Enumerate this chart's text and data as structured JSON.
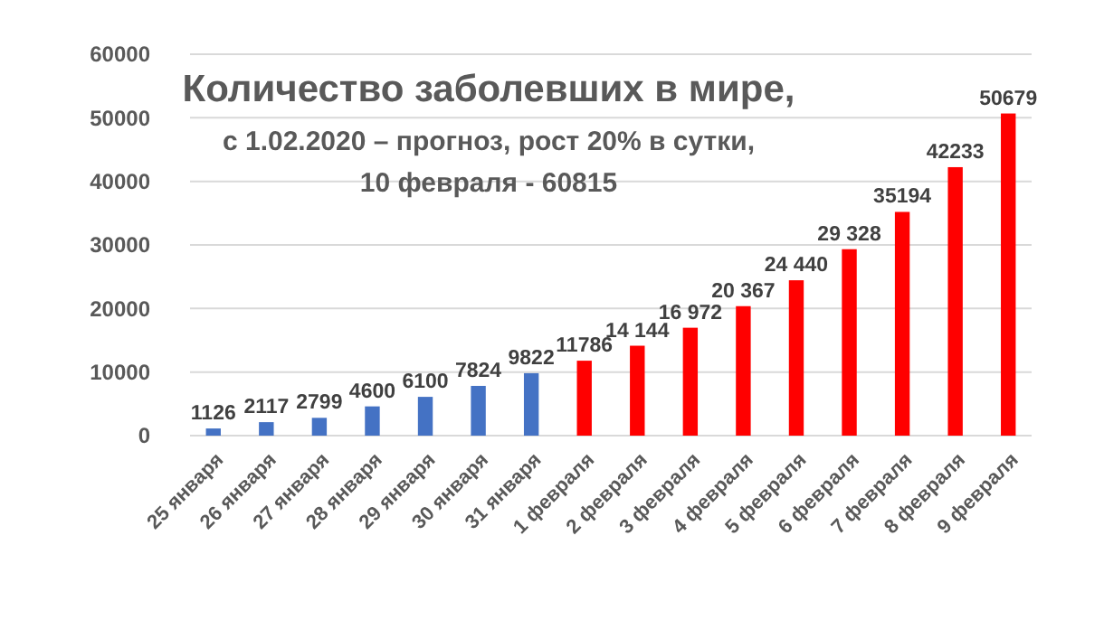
{
  "chart_data": {
    "type": "bar",
    "title": "Количество заболевших в мире,",
    "subtitle": "с 1.02.2020 – прогноз, рост 20% в сутки,",
    "annotations": [
      "10 февраля - 60815"
    ],
    "categories": [
      "25 января",
      "26 января",
      "27 января",
      "28 января",
      "29 января",
      "30 января",
      "31 января",
      "1 февраля",
      "2 февраля",
      "3 февраля",
      "4 февраля",
      "5 февраля",
      "6 февраля",
      "7 февраля",
      "8 февраля",
      "9 февраля"
    ],
    "values": [
      1126,
      2117,
      2799,
      4600,
      6100,
      7824,
      9822,
      11786,
      14144,
      16972,
      20367,
      24440,
      29328,
      35194,
      42233,
      50679
    ],
    "value_labels": [
      "1126",
      "2117",
      "2799",
      "4600",
      "6100",
      "7824",
      "9822",
      "11786",
      "14 144",
      "16 972",
      "20 367",
      "24 440",
      "29 328",
      "35194",
      "42233",
      "50679"
    ],
    "colors": [
      "#4472c4",
      "#4472c4",
      "#4472c4",
      "#4472c4",
      "#4472c4",
      "#4472c4",
      "#4472c4",
      "#ff0000",
      "#ff0000",
      "#ff0000",
      "#ff0000",
      "#ff0000",
      "#ff0000",
      "#ff0000",
      "#ff0000",
      "#ff0000"
    ],
    "ylim": [
      0,
      60000
    ],
    "yticks": [
      0,
      10000,
      20000,
      30000,
      40000,
      50000,
      60000
    ],
    "grid": "y"
  }
}
